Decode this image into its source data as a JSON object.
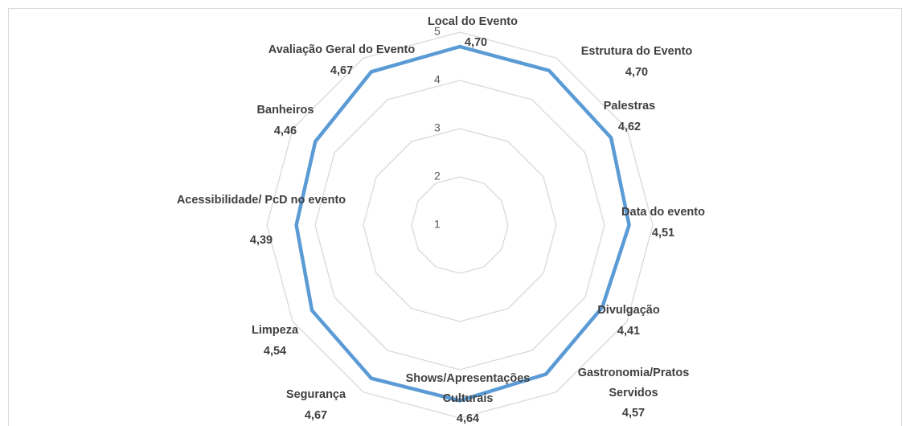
{
  "chart_data": {
    "type": "radar",
    "categories": [
      "Local do Evento",
      "Estrutura do Evento",
      "Palestras",
      "Data do evento",
      "Divulgação",
      "Gastronomia/Pratos Servidos",
      "Shows/Apresentações Culturais",
      "Segurança",
      "Limpeza",
      "Acessibilidade/ PcD no evento",
      "Banheiros",
      "Avaliação Geral do Evento"
    ],
    "series": [
      {
        "color": "#5b9bd5",
        "values": [
          4.7,
          4.7,
          4.62,
          4.51,
          4.41,
          4.57,
          4.64,
          4.67,
          4.54,
          4.39,
          4.46,
          4.67
        ],
        "value_labels": [
          "4,70",
          "4,70",
          "4,62",
          "4,51",
          "4,41",
          "4,57",
          "4,64",
          "4,67",
          "4,54",
          "4,39",
          "4,46",
          "4,67"
        ]
      }
    ],
    "ylim": [
      1,
      5
    ],
    "yticks": [
      1,
      2,
      3,
      4,
      5
    ],
    "grid": true
  }
}
